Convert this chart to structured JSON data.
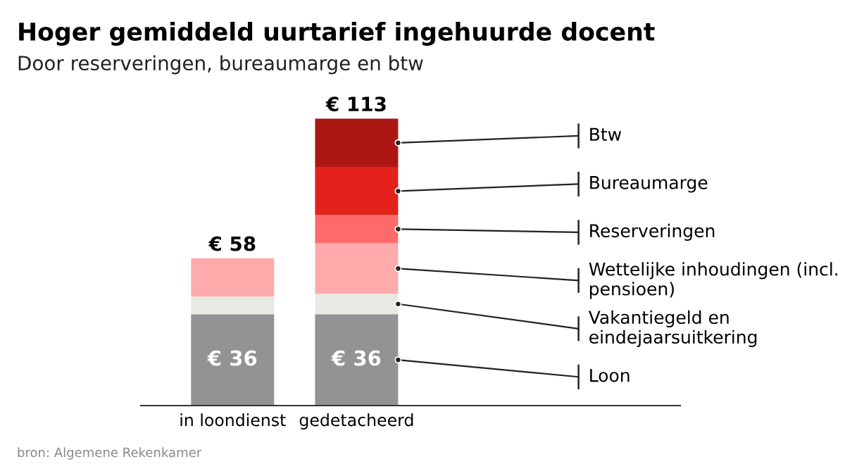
{
  "chart_data": {
    "type": "bar",
    "stacked": true,
    "title": "Hoger gemiddeld uurtarief ingehuurde docent",
    "subtitle": "Door reserveringen, bureaumarge en btw",
    "categories": [
      "in loondienst",
      "gedetacheerd"
    ],
    "series": [
      {
        "name": "Loon",
        "color": "#939393",
        "values": [
          36,
          36
        ],
        "value_labels": [
          "€ 36",
          "€ 36"
        ]
      },
      {
        "name": "Vakantiegeld en eindejaarsuitkering",
        "color": "#e9e9e4",
        "values": [
          7,
          8
        ]
      },
      {
        "name": "Wettelijke inhoudingen (incl. pensioen)",
        "color": "#ffabab",
        "values": [
          15,
          20
        ]
      },
      {
        "name": "Reserveringen",
        "color": "#ff6b6b",
        "values": [
          null,
          11
        ]
      },
      {
        "name": "Bureaumarge",
        "color": "#e4211a",
        "values": [
          null,
          19
        ]
      },
      {
        "name": "Btw",
        "color": "#ad1713",
        "values": [
          null,
          19
        ]
      }
    ],
    "totals": [
      "€ 58",
      "€ 113"
    ],
    "grid": false,
    "legend": false,
    "annotations": [
      "bron: Algemene Rekenkamer"
    ]
  }
}
